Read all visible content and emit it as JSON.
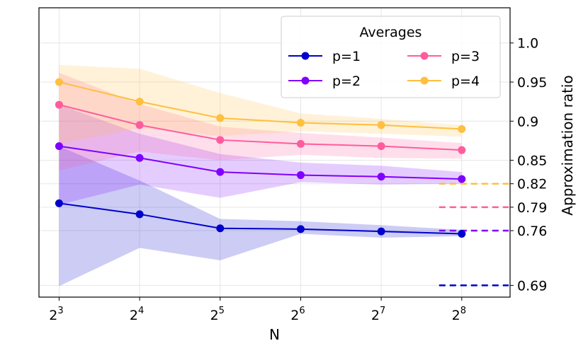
{
  "chart_data": {
    "type": "line",
    "xlabel": "N",
    "ylabel": "Approximation ratio",
    "x": [
      3,
      4,
      5,
      6,
      7,
      8
    ],
    "x_tick_base": "2",
    "x_tick_exponents": [
      "3",
      "4",
      "5",
      "6",
      "7",
      "8"
    ],
    "xlim": [
      2.75,
      8.6
    ],
    "ylim": [
      0.675,
      1.045
    ],
    "y_ticks": [
      "0.69",
      "0.76",
      "0.79",
      "0.82",
      "0.85",
      "0.9",
      "0.95",
      "1.0"
    ],
    "y_axis_position": "right",
    "grid": true,
    "legend": {
      "title": "Averages",
      "placement": "top-right",
      "columns": 2
    },
    "series": [
      {
        "name": "p=1",
        "color": "#0000cc",
        "values": [
          0.795,
          0.781,
          0.763,
          0.762,
          0.759,
          0.756
        ],
        "band_low": [
          0.689,
          0.738,
          0.722,
          0.756,
          0.751,
          0.753
        ],
        "band_high": [
          0.868,
          0.824,
          0.775,
          0.772,
          0.767,
          0.761
        ],
        "baseline": 0.69
      },
      {
        "name": "p=2",
        "color": "#7f00ff",
        "values": [
          0.868,
          0.853,
          0.835,
          0.831,
          0.829,
          0.826
        ],
        "band_low": [
          0.793,
          0.819,
          0.802,
          0.822,
          0.819,
          0.82
        ],
        "band_high": [
          0.921,
          0.884,
          0.858,
          0.847,
          0.843,
          0.835
        ],
        "baseline": 0.76
      },
      {
        "name": "p=3",
        "color": "#ff5c9d",
        "values": [
          0.921,
          0.895,
          0.876,
          0.871,
          0.868,
          0.863
        ],
        "band_low": [
          0.837,
          0.861,
          0.85,
          0.857,
          0.853,
          0.852
        ],
        "band_high": [
          0.962,
          0.922,
          0.893,
          0.885,
          0.879,
          0.872
        ],
        "baseline": 0.79
      },
      {
        "name": "p=4",
        "color": "#ffbf3f",
        "values": [
          0.95,
          0.925,
          0.904,
          0.898,
          0.895,
          0.89
        ],
        "band_low": [
          0.871,
          0.891,
          0.881,
          0.887,
          0.884,
          0.88
        ],
        "band_high": [
          0.972,
          0.967,
          0.936,
          0.91,
          0.903,
          0.895
        ],
        "baseline": 0.82
      }
    ]
  }
}
